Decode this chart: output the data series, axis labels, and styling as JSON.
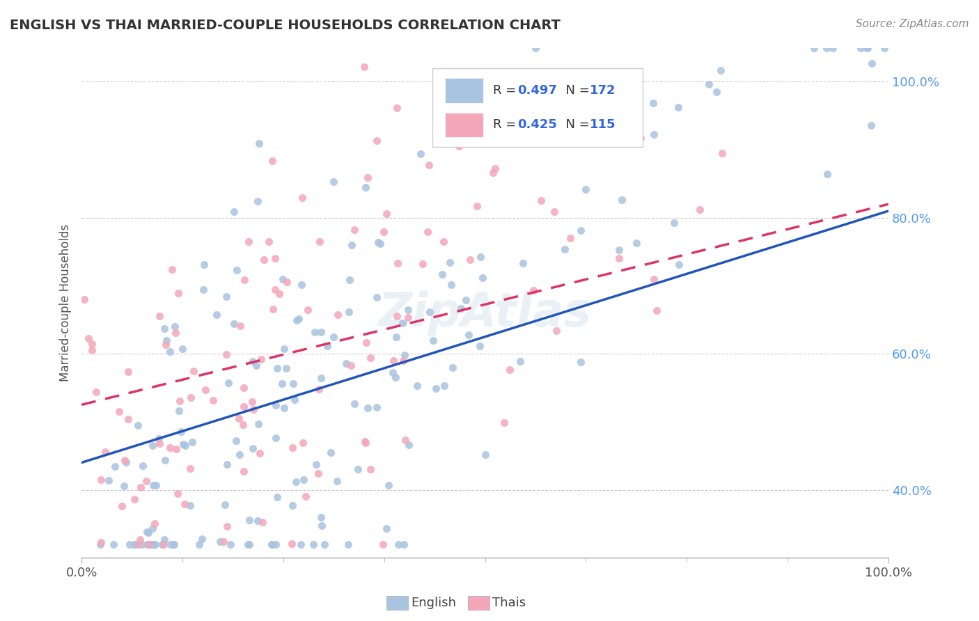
{
  "title": "ENGLISH VS THAI MARRIED-COUPLE HOUSEHOLDS CORRELATION CHART",
  "source": "Source: ZipAtlas.com",
  "ylabel": "Married-couple Households",
  "xlim": [
    0.0,
    1.0
  ],
  "ylim": [
    0.3,
    1.05
  ],
  "y_tick_labels": [
    "40.0%",
    "60.0%",
    "80.0%",
    "100.0%"
  ],
  "y_tick_vals": [
    0.4,
    0.6,
    0.8,
    1.0
  ],
  "english_R": 0.497,
  "english_N": 172,
  "thai_R": 0.425,
  "thai_N": 115,
  "english_color": "#a8c4e0",
  "thai_color": "#f4a7b9",
  "english_line_color": "#2255bb",
  "thai_line_color": "#dd3366",
  "english_intercept": 0.44,
  "english_slope": 0.37,
  "thai_intercept": 0.525,
  "thai_slope": 0.295
}
